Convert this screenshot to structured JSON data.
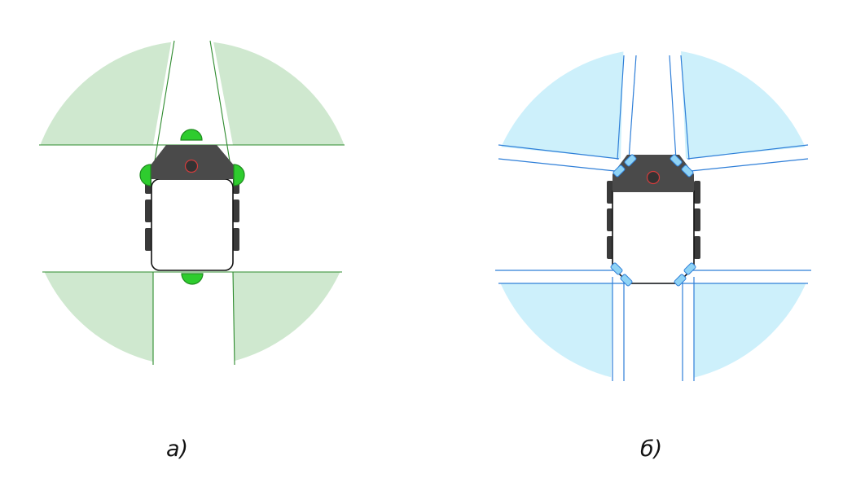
{
  "figure": {
    "panels": [
      {
        "id": "a",
        "label": "а)",
        "sensor_color": "#2ecc2e",
        "sector_fill": "#cfe8cf",
        "boundary_color": "#2e8b2e"
      },
      {
        "id": "b",
        "label": "б)",
        "sensor_color": "#8fd3f5",
        "sector_fill": "#cdf0fb",
        "boundary_color": "#2f7fd8"
      }
    ],
    "robot": {
      "head_color": "#4a4a4a",
      "wheel_color": "#3a3a3a",
      "center_marker_color": "#d43c3c"
    }
  }
}
